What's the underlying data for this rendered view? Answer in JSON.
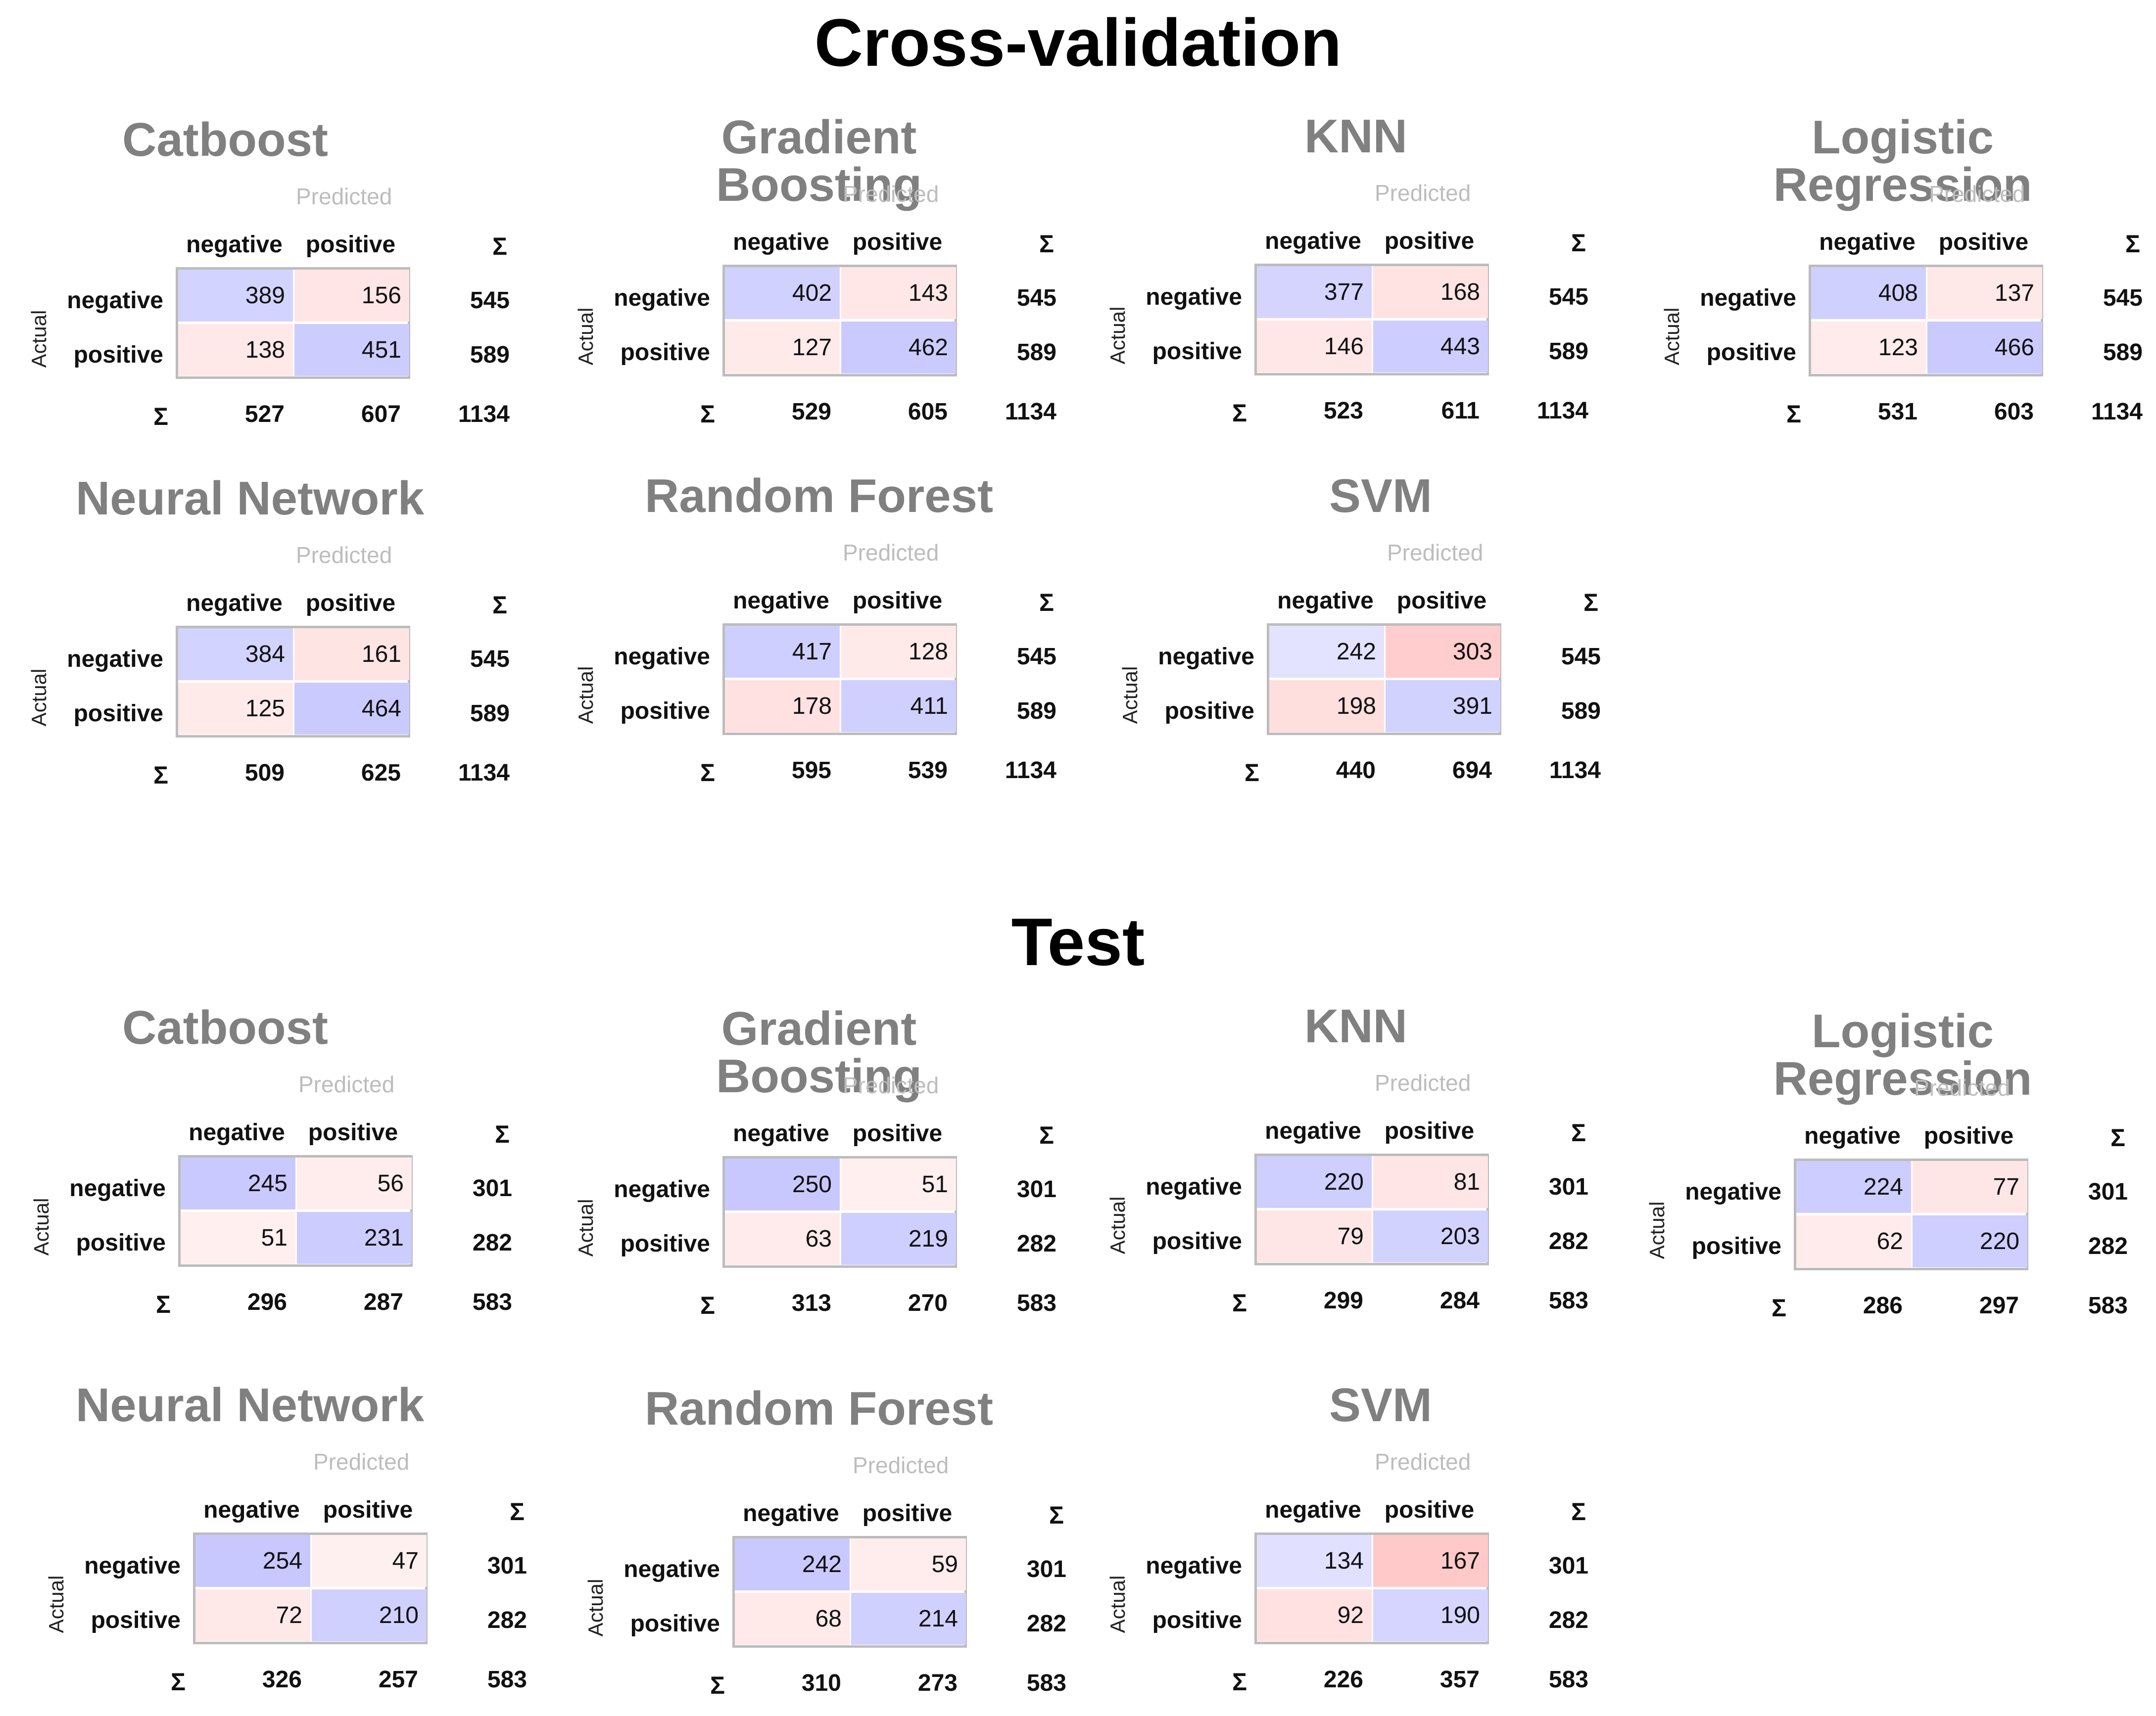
{
  "sections": {
    "cv_title": "Cross-validation",
    "test_title": "Test"
  },
  "labels": {
    "predicted": "Predicted",
    "actual": "Actual",
    "sigma": "Σ",
    "classes": [
      "negative",
      "positive"
    ]
  },
  "chart_data": [
    {
      "type": "table",
      "section": "Cross-validation",
      "title": "Catboost",
      "matrix": [
        [
          389,
          156
        ],
        [
          138,
          451
        ]
      ],
      "row_sums": [
        545,
        589
      ],
      "col_sums": [
        527,
        607
      ],
      "total": 1134
    },
    {
      "type": "table",
      "section": "Cross-validation",
      "title": "Gradient Boosting",
      "matrix": [
        [
          402,
          143
        ],
        [
          127,
          462
        ]
      ],
      "row_sums": [
        545,
        589
      ],
      "col_sums": [
        529,
        605
      ],
      "total": 1134
    },
    {
      "type": "table",
      "section": "Cross-validation",
      "title": "KNN",
      "matrix": [
        [
          377,
          168
        ],
        [
          146,
          443
        ]
      ],
      "row_sums": [
        545,
        589
      ],
      "col_sums": [
        523,
        611
      ],
      "total": 1134
    },
    {
      "type": "table",
      "section": "Cross-validation",
      "title": "Logistic Regression",
      "matrix": [
        [
          408,
          137
        ],
        [
          123,
          466
        ]
      ],
      "row_sums": [
        545,
        589
      ],
      "col_sums": [
        531,
        603
      ],
      "total": 1134
    },
    {
      "type": "table",
      "section": "Cross-validation",
      "title": "Neural Network",
      "matrix": [
        [
          384,
          161
        ],
        [
          125,
          464
        ]
      ],
      "row_sums": [
        545,
        589
      ],
      "col_sums": [
        509,
        625
      ],
      "total": 1134
    },
    {
      "type": "table",
      "section": "Cross-validation",
      "title": "Random Forest",
      "matrix": [
        [
          417,
          128
        ],
        [
          178,
          411
        ]
      ],
      "row_sums": [
        545,
        589
      ],
      "col_sums": [
        595,
        539
      ],
      "total": 1134
    },
    {
      "type": "table",
      "section": "Cross-validation",
      "title": "SVM",
      "matrix": [
        [
          242,
          303
        ],
        [
          198,
          391
        ]
      ],
      "row_sums": [
        545,
        589
      ],
      "col_sums": [
        440,
        694
      ],
      "total": 1134
    },
    {
      "type": "table",
      "section": "Test",
      "title": "Catboost",
      "matrix": [
        [
          245,
          56
        ],
        [
          51,
          231
        ]
      ],
      "row_sums": [
        301,
        282
      ],
      "col_sums": [
        296,
        287
      ],
      "total": 583
    },
    {
      "type": "table",
      "section": "Test",
      "title": "Gradient Boosting",
      "matrix": [
        [
          250,
          51
        ],
        [
          63,
          219
        ]
      ],
      "row_sums": [
        301,
        282
      ],
      "col_sums": [
        313,
        270
      ],
      "total": 583
    },
    {
      "type": "table",
      "section": "Test",
      "title": "KNN",
      "matrix": [
        [
          220,
          81
        ],
        [
          79,
          203
        ]
      ],
      "row_sums": [
        301,
        282
      ],
      "col_sums": [
        299,
        284
      ],
      "total": 583
    },
    {
      "type": "table",
      "section": "Test",
      "title": "Logistic Regression",
      "matrix": [
        [
          224,
          77
        ],
        [
          62,
          220
        ]
      ],
      "row_sums": [
        301,
        282
      ],
      "col_sums": [
        286,
        297
      ],
      "total": 583
    },
    {
      "type": "table",
      "section": "Test",
      "title": "Neural Network",
      "matrix": [
        [
          254,
          47
        ],
        [
          72,
          210
        ]
      ],
      "row_sums": [
        301,
        282
      ],
      "col_sums": [
        326,
        257
      ],
      "total": 583
    },
    {
      "type": "table",
      "section": "Test",
      "title": "Random Forest",
      "matrix": [
        [
          242,
          59
        ],
        [
          68,
          214
        ]
      ],
      "row_sums": [
        301,
        282
      ],
      "col_sums": [
        310,
        273
      ],
      "total": 583
    },
    {
      "type": "table",
      "section": "Test",
      "title": "SVM",
      "matrix": [
        [
          134,
          167
        ],
        [
          92,
          190
        ]
      ],
      "row_sums": [
        301,
        282
      ],
      "col_sums": [
        226,
        357
      ],
      "total": 583
    }
  ]
}
